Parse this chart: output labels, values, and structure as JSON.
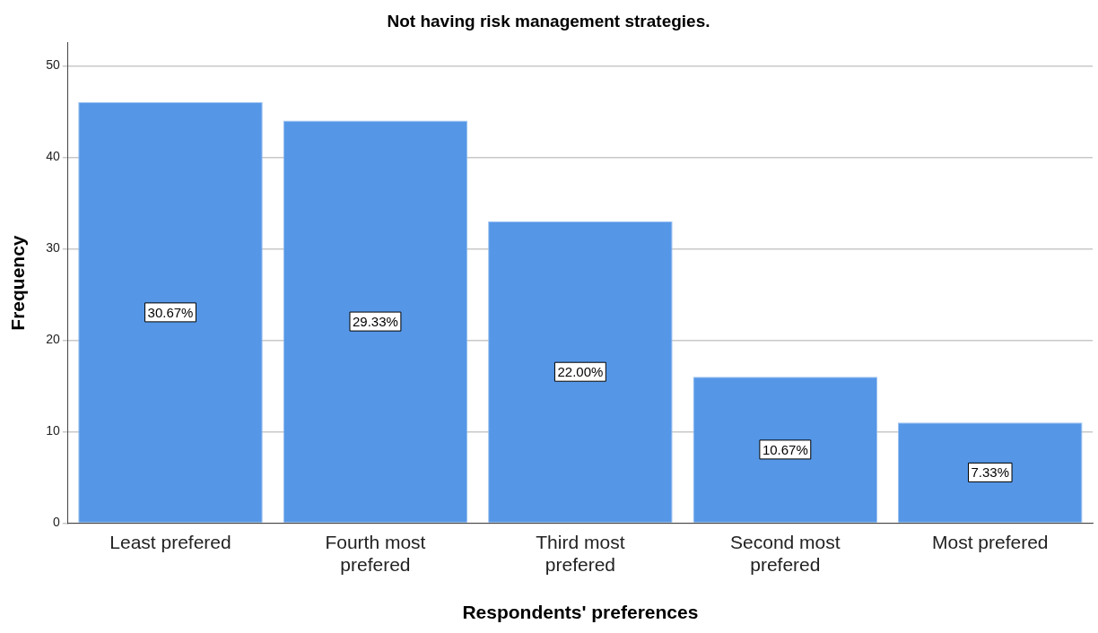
{
  "chart_data": {
    "type": "bar",
    "title": "Not having risk management strategies.",
    "xlabel": "Respondents' preferences",
    "ylabel": "Frequency",
    "categories": [
      "Least prefered",
      "Fourth most prefered",
      "Third most prefered",
      "Second most prefered",
      "Most prefered"
    ],
    "values": [
      46,
      44,
      33,
      16,
      11
    ],
    "color": "#5596e6",
    "annotations": [
      "30.67%",
      "29.33%",
      "22.00%",
      "10.67%",
      "7.33%"
    ],
    "ylim": [
      0,
      52.5
    ],
    "yticks": [
      0,
      10,
      20,
      30,
      40,
      50
    ],
    "grid": "y",
    "legend": false
  }
}
